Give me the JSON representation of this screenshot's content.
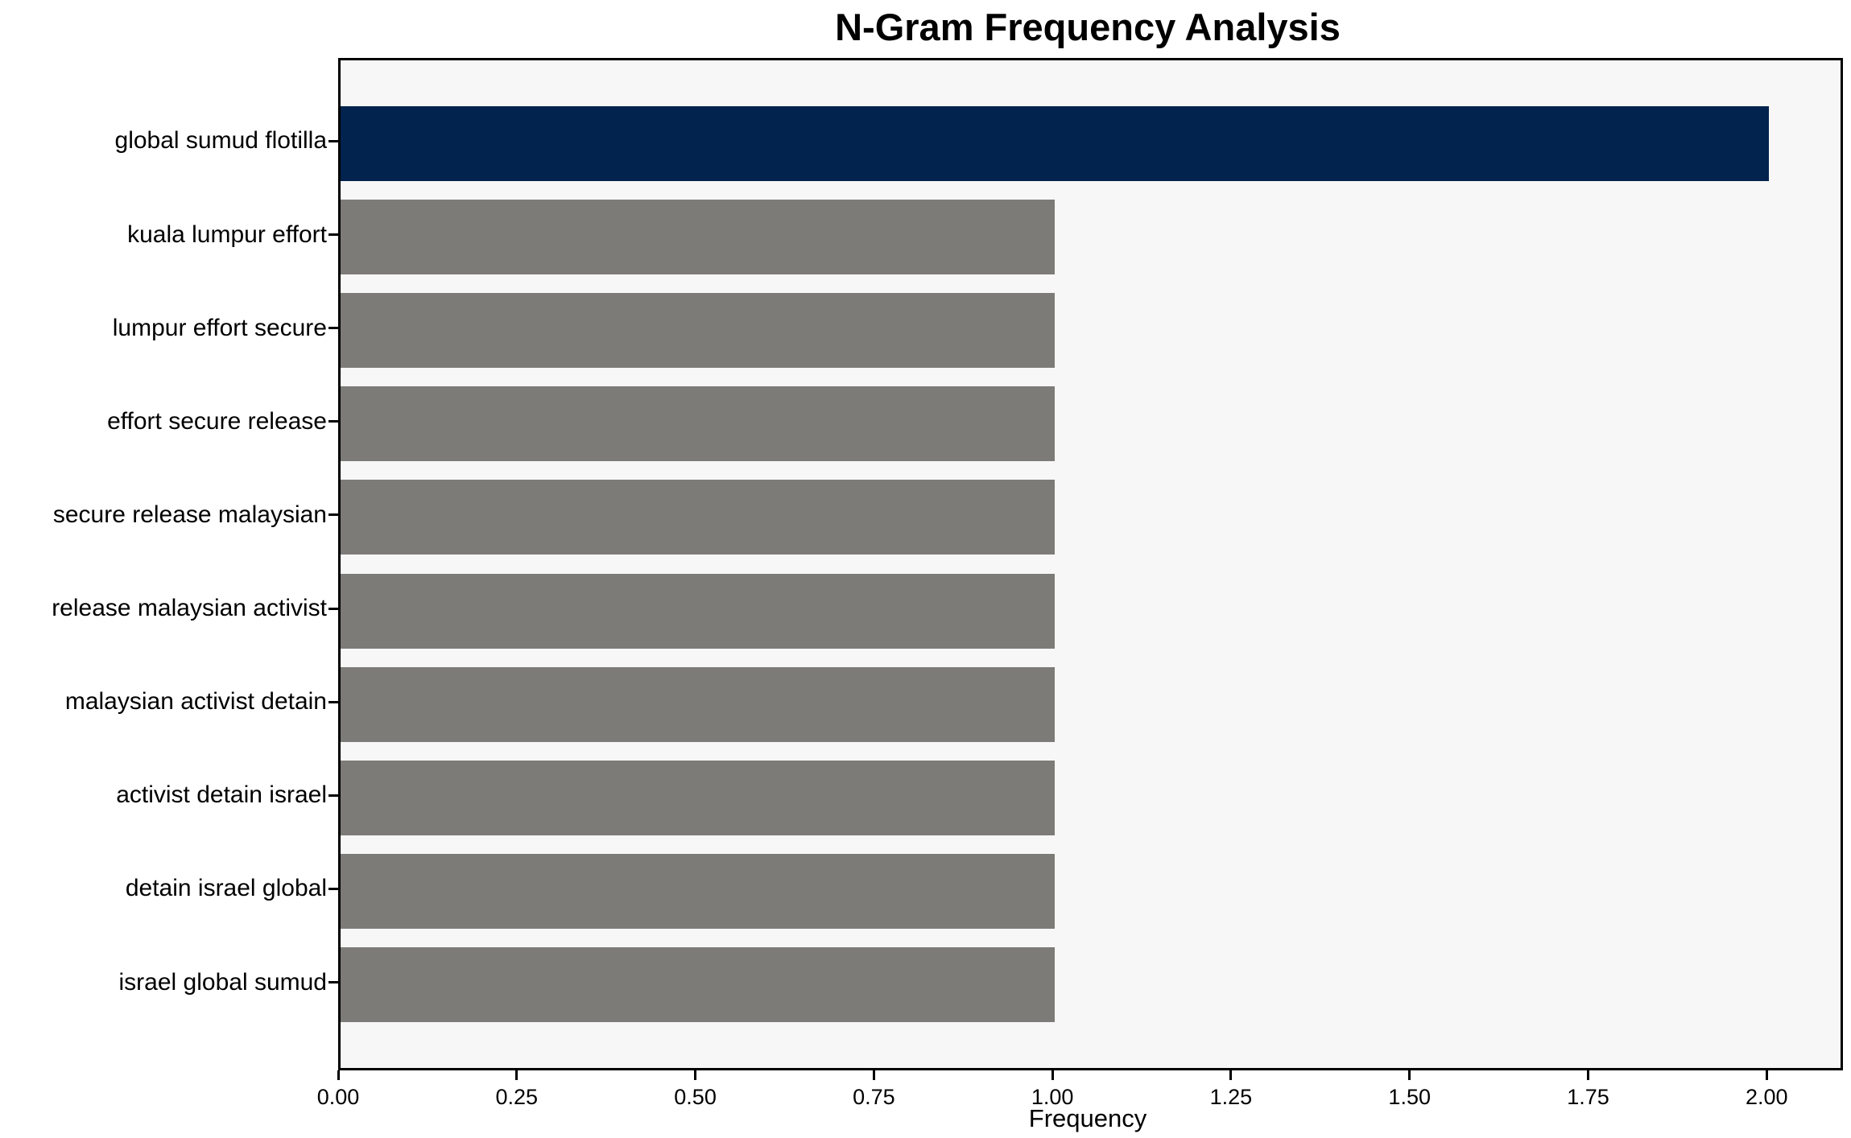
{
  "chart_data": {
    "type": "bar",
    "orientation": "horizontal",
    "title": "N-Gram Frequency Analysis",
    "xlabel": "Frequency",
    "ylabel": "",
    "categories": [
      "global sumud flotilla",
      "kuala lumpur effort",
      "lumpur effort secure",
      "effort secure release",
      "secure release malaysian",
      "release malaysian activist",
      "malaysian activist detain",
      "activist detain israel",
      "detain israel global",
      "israel global sumud"
    ],
    "values": [
      2,
      1,
      1,
      1,
      1,
      1,
      1,
      1,
      1,
      1
    ],
    "xlim": [
      0,
      2.1
    ],
    "xticks": [
      0,
      0.25,
      0.5,
      0.75,
      1.0,
      1.25,
      1.5,
      1.75,
      2.0
    ],
    "xtick_labels": [
      "0.00",
      "0.25",
      "0.50",
      "0.75",
      "1.00",
      "1.25",
      "1.50",
      "1.75",
      "2.00"
    ],
    "grid": false,
    "legend": "none",
    "colors": {
      "highlight_bar": "#02234d",
      "default_bar": "#7c7b77",
      "plot_background": "#f7f7f7",
      "figure_background": "#ffffff",
      "text": "#000000",
      "spine": "#000000"
    }
  }
}
